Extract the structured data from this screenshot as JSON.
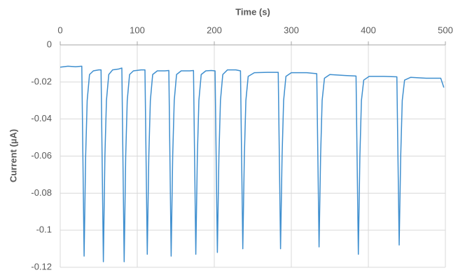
{
  "chart_data": {
    "type": "line",
    "x_label": "Time (s)",
    "y_label": "Current (µA)",
    "color": "#3f8fcf",
    "grid": true,
    "xlim": [
      0,
      500
    ],
    "xticks": [
      0,
      100,
      200,
      300,
      400,
      500
    ],
    "ylim": [
      -0.12,
      0
    ],
    "yticks": [
      0,
      -0.02,
      -0.04,
      -0.06,
      -0.08,
      -0.1,
      -0.12
    ],
    "x": [
      0,
      10,
      20,
      28,
      31,
      33,
      35,
      38,
      43,
      50,
      53,
      56,
      58,
      60,
      63,
      68,
      76,
      80,
      83,
      85,
      87,
      90,
      95,
      105,
      110,
      113,
      115,
      117,
      120,
      126,
      136,
      141,
      144,
      146,
      148,
      151,
      157,
      168,
      173,
      176,
      178,
      180,
      183,
      189,
      196,
      201,
      204,
      206,
      208,
      211,
      217,
      228,
      234,
      237,
      239,
      241,
      244,
      252,
      270,
      283,
      286,
      288,
      290,
      293,
      300,
      320,
      333,
      336,
      338,
      340,
      343,
      350,
      370,
      384,
      387,
      389,
      391,
      394,
      401,
      420,
      437,
      440,
      442,
      444,
      447,
      455,
      475,
      494,
      498
    ],
    "values": [
      -0.012,
      -0.0115,
      -0.0118,
      -0.0115,
      -0.114,
      -0.06,
      -0.03,
      -0.016,
      -0.014,
      -0.0135,
      -0.0135,
      -0.117,
      -0.06,
      -0.03,
      -0.016,
      -0.0135,
      -0.013,
      -0.0125,
      -0.117,
      -0.06,
      -0.03,
      -0.016,
      -0.014,
      -0.0135,
      -0.0135,
      -0.113,
      -0.06,
      -0.03,
      -0.016,
      -0.014,
      -0.014,
      -0.0138,
      -0.114,
      -0.06,
      -0.03,
      -0.016,
      -0.014,
      -0.014,
      -0.0138,
      -0.113,
      -0.06,
      -0.03,
      -0.016,
      -0.014,
      -0.0138,
      -0.014,
      -0.112,
      -0.06,
      -0.03,
      -0.016,
      -0.0135,
      -0.0135,
      -0.014,
      -0.11,
      -0.06,
      -0.03,
      -0.017,
      -0.015,
      -0.0148,
      -0.0148,
      -0.11,
      -0.06,
      -0.03,
      -0.017,
      -0.015,
      -0.015,
      -0.0155,
      -0.109,
      -0.06,
      -0.03,
      -0.018,
      -0.016,
      -0.0165,
      -0.0168,
      -0.113,
      -0.06,
      -0.03,
      -0.019,
      -0.017,
      -0.017,
      -0.0172,
      -0.108,
      -0.06,
      -0.03,
      -0.019,
      -0.0175,
      -0.018,
      -0.018,
      -0.023
    ]
  }
}
